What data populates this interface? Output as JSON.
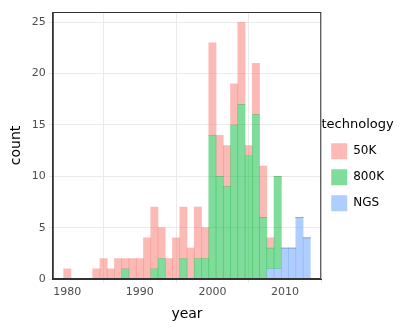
{
  "chart_data": {
    "type": "histogram",
    "x_label": "year",
    "y_label": "count",
    "legend_title": "technology",
    "legend": "right",
    "stacked": true,
    "grid": true,
    "bins": [
      1979.5,
      1980.5,
      1981.5,
      1982.5,
      1983.5,
      1984.5,
      1985.5,
      1986.5,
      1987.5,
      1988.5,
      1989.5,
      1990.5,
      1991.5,
      1992.5,
      1993.5,
      1994.5,
      1995.5,
      1996.5,
      1997.5,
      1998.5,
      1999.5,
      2000.5,
      2001.5,
      2002.5,
      2003.5,
      2004.5,
      2005.5,
      2006.5,
      2007.5,
      2008.5,
      2009.5,
      2010.5,
      2011.5,
      2012.5,
      2013.5
    ],
    "series": [
      {
        "name": "50K",
        "color": "#F8766D",
        "values": [
          1,
          0,
          0,
          0,
          1,
          2,
          1,
          2,
          1,
          2,
          2,
          4,
          6,
          3,
          2,
          4,
          5,
          3,
          5,
          3,
          9,
          4,
          4,
          4,
          8,
          1,
          5,
          5,
          1,
          0,
          0,
          0,
          0,
          0
        ]
      },
      {
        "name": "800K",
        "color": "#00BA38",
        "values": [
          0,
          0,
          0,
          0,
          0,
          0,
          0,
          0,
          1,
          0,
          0,
          0,
          1,
          2,
          0,
          0,
          2,
          0,
          2,
          2,
          14,
          10,
          9,
          15,
          17,
          12,
          16,
          6,
          2,
          9,
          0,
          0,
          0,
          0
        ]
      },
      {
        "name": "NGS",
        "color": "#619CFF",
        "values": [
          0,
          0,
          0,
          0,
          0,
          0,
          0,
          0,
          0,
          0,
          0,
          0,
          0,
          0,
          0,
          0,
          0,
          0,
          0,
          0,
          0,
          0,
          0,
          0,
          0,
          0,
          0,
          0,
          1,
          1,
          3,
          3,
          6,
          4
        ]
      }
    ],
    "xlim": [
      1978,
      2015
    ],
    "xticks": [
      1980,
      1990,
      2000,
      2010
    ],
    "ylim": [
      0,
      26
    ],
    "yticks": [
      0,
      5,
      10,
      15,
      20,
      25
    ]
  }
}
